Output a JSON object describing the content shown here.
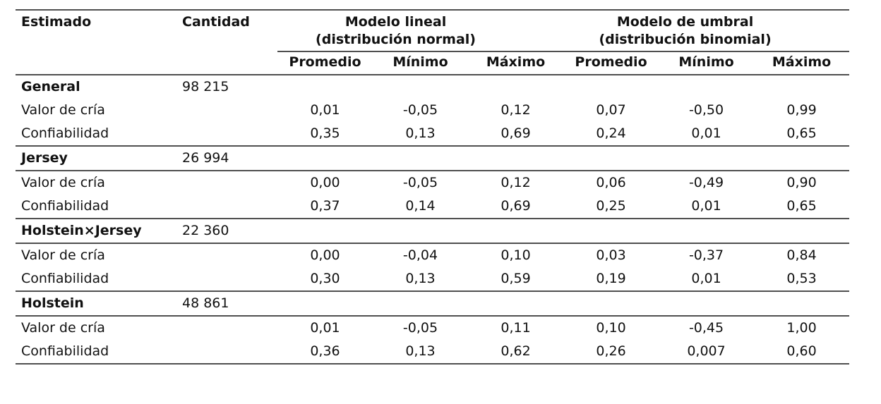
{
  "table": {
    "header": {
      "estimado": "Estimado",
      "cantidad": "Cantidad",
      "linear_group": {
        "line1": "Modelo lineal",
        "line2": "(distribución normal)"
      },
      "threshold_group": {
        "line1": "Modelo de umbral",
        "line2": "(distribución binomial)"
      },
      "stats": [
        "Promedio",
        "Mínimo",
        "Máximo",
        "Promedio",
        "Mínimo",
        "Máximo"
      ]
    },
    "groups": [
      {
        "name": "General",
        "cantidad": "98 215",
        "rows": [
          {
            "label": "Valor de cría",
            "values": [
              "0,01",
              "-0,05",
              "0,12",
              "0,07",
              "-0,50",
              "0,99"
            ]
          },
          {
            "label": "Confiabilidad",
            "values": [
              "0,35",
              "0,13",
              "0,69",
              "0,24",
              "0,01",
              "0,65"
            ]
          }
        ]
      },
      {
        "name": "Jersey",
        "cantidad": "26 994",
        "rows": [
          {
            "label": "Valor de cría",
            "values": [
              "0,00",
              "-0,05",
              "0,12",
              "0,06",
              "-0,49",
              "0,90"
            ]
          },
          {
            "label": "Confiabilidad",
            "values": [
              "0,37",
              "0,14",
              "0,69",
              "0,25",
              "0,01",
              "0,65"
            ]
          }
        ]
      },
      {
        "name": "Holstein×Jersey",
        "cantidad": "22 360",
        "rows": [
          {
            "label": "Valor de cría",
            "values": [
              "0,00",
              "-0,04",
              "0,10",
              "0,03",
              "-0,37",
              "0,84"
            ]
          },
          {
            "label": "Confiabilidad",
            "values": [
              "0,30",
              "0,13",
              "0,59",
              "0,19",
              "0,01",
              "0,53"
            ]
          }
        ]
      },
      {
        "name": "Holstein",
        "cantidad": "48 861",
        "rows": [
          {
            "label": "Valor de cría",
            "values": [
              "0,01",
              "-0,05",
              "0,11",
              "0,10",
              "-0,45",
              "1,00"
            ]
          },
          {
            "label": "Confiabilidad",
            "values": [
              "0,36",
              "0,13",
              "0,62",
              "0,26",
              "0,007",
              "0,60"
            ]
          }
        ]
      }
    ]
  },
  "chart_data": {
    "type": "table",
    "columns": [
      "Estimado",
      "Cantidad",
      "Modelo lineal (distribución normal) - Promedio",
      "Modelo lineal - Mínimo",
      "Modelo lineal - Máximo",
      "Modelo de umbral (distribución binomial) - Promedio",
      "Modelo de umbral - Mínimo",
      "Modelo de umbral - Máximo"
    ],
    "rows": [
      [
        "General",
        "98 215",
        "",
        "",
        "",
        "",
        "",
        ""
      ],
      [
        "Valor de cría",
        "",
        "0,01",
        "-0,05",
        "0,12",
        "0,07",
        "-0,50",
        "0,99"
      ],
      [
        "Confiabilidad",
        "",
        "0,35",
        "0,13",
        "0,69",
        "0,24",
        "0,01",
        "0,65"
      ],
      [
        "Jersey",
        "26 994",
        "",
        "",
        "",
        "",
        "",
        ""
      ],
      [
        "Valor de cría",
        "",
        "0,00",
        "-0,05",
        "0,12",
        "0,06",
        "-0,49",
        "0,90"
      ],
      [
        "Confiabilidad",
        "",
        "0,37",
        "0,14",
        "0,69",
        "0,25",
        "0,01",
        "0,65"
      ],
      [
        "Holstein×Jersey",
        "22 360",
        "",
        "",
        "",
        "",
        "",
        ""
      ],
      [
        "Valor de cría",
        "",
        "0,00",
        "-0,04",
        "0,10",
        "0,03",
        "-0,37",
        "0,84"
      ],
      [
        "Confiabilidad",
        "",
        "0,30",
        "0,13",
        "0,59",
        "0,19",
        "0,01",
        "0,53"
      ],
      [
        "Holstein",
        "48 861",
        "",
        "",
        "",
        "",
        "",
        ""
      ],
      [
        "Valor de cría",
        "",
        "0,01",
        "-0,05",
        "0,11",
        "0,10",
        "-0,45",
        "1,00"
      ],
      [
        "Confiabilidad",
        "",
        "0,36",
        "0,13",
        "0,62",
        "0,26",
        "0,007",
        "0,60"
      ]
    ]
  }
}
